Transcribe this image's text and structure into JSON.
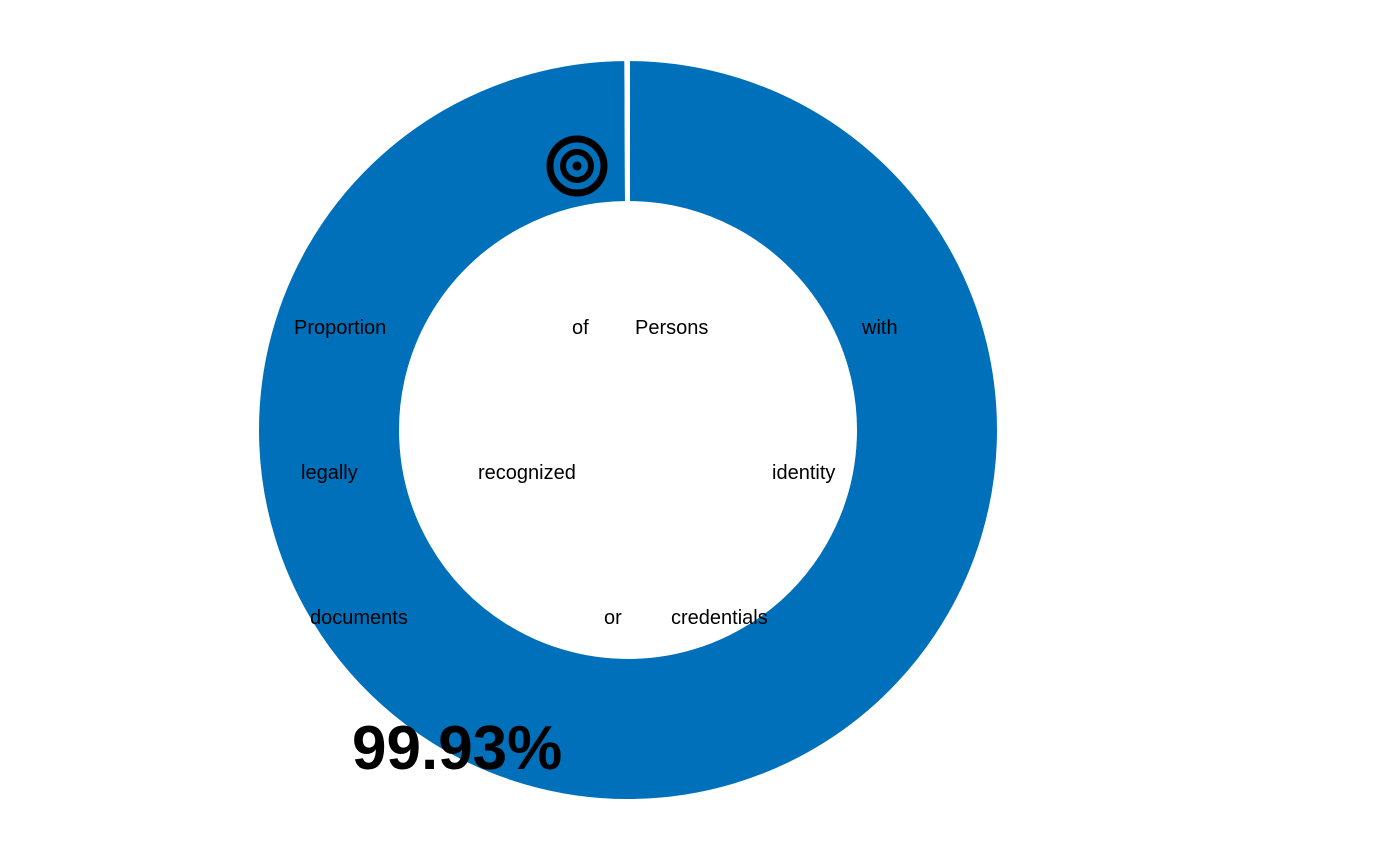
{
  "chart_data": {
    "type": "pie",
    "variant": "donut",
    "slices": [
      {
        "label": "Proportion of Persons with legally recognized identity documents or credentials",
        "value": 99.93,
        "color": "#0070BA"
      },
      {
        "label": "",
        "value": 0.07,
        "color": "#FFFFFF"
      }
    ],
    "value_label": "99.93%",
    "center_text_words": [
      "Proportion",
      "of",
      "Persons",
      "with",
      "legally",
      "recognized",
      "identity",
      "documents",
      "or",
      "credentials"
    ]
  },
  "colors": {
    "accent": "#0070BA",
    "background": "#FFFFFF",
    "text": "#000000"
  },
  "icon": "target-icon"
}
